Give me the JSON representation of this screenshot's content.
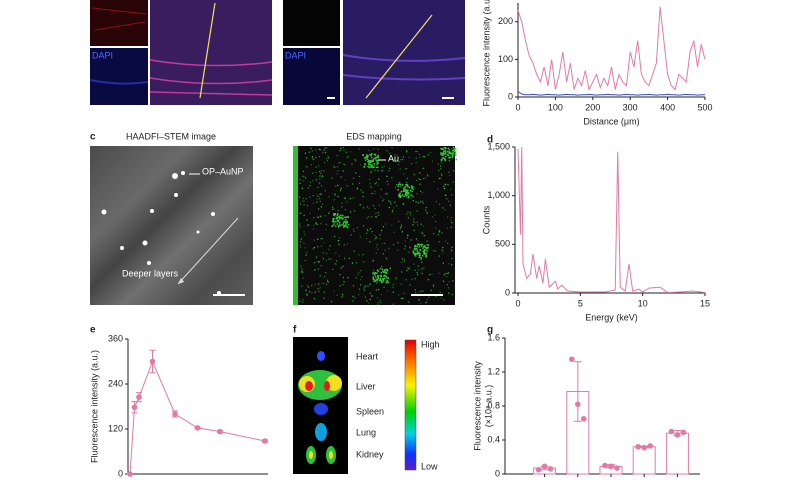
{
  "chart_data": [
    {
      "type": "line",
      "ylabel": "Fluorescence intensity (a.u.)",
      "xlabel": "Distance (μm)",
      "x": [
        0,
        10,
        20,
        30,
        40,
        50,
        60,
        70,
        80,
        90,
        100,
        110,
        120,
        130,
        140,
        150,
        160,
        170,
        180,
        190,
        200,
        210,
        220,
        230,
        240,
        250,
        260,
        270,
        280,
        290,
        300,
        310,
        320,
        330,
        340,
        350,
        360,
        370,
        380,
        390,
        400,
        410,
        420,
        430,
        440,
        450,
        460,
        470,
        480,
        490,
        500
      ],
      "series": [
        {
          "color": "#e07ba4",
          "values": [
            230,
            200,
            150,
            110,
            90,
            60,
            40,
            80,
            30,
            100,
            20,
            60,
            120,
            40,
            90,
            20,
            50,
            30,
            70,
            20,
            40,
            60,
            25,
            50,
            30,
            80,
            20,
            60,
            40,
            30,
            120,
            80,
            150,
            60,
            40,
            30,
            60,
            90,
            240,
            150,
            60,
            30,
            20,
            60,
            50,
            40,
            120,
            150,
            80,
            140,
            100
          ]
        },
        {
          "color": "#3b4cc0",
          "values": [
            15,
            8,
            6,
            6,
            7,
            6,
            5,
            6,
            7,
            6,
            6,
            5,
            6,
            7,
            6,
            6,
            5,
            6,
            6,
            7,
            6,
            5,
            6,
            6,
            7,
            6,
            6,
            5,
            6,
            7,
            6,
            6,
            5,
            6,
            6,
            7,
            6,
            5,
            6,
            6,
            7,
            6,
            6,
            5,
            6,
            7,
            6,
            6,
            5,
            6,
            6
          ]
        }
      ],
      "xlim": [
        0,
        500
      ],
      "ylim": [
        0,
        250
      ],
      "xticks": [
        0,
        100,
        200,
        300,
        400,
        500
      ],
      "yticks": [
        0,
        100,
        200
      ]
    },
    {
      "type": "line",
      "panel": "d",
      "ylabel": "Counts",
      "xlabel": "Energy (keV)",
      "x": [
        0,
        0.2,
        0.3,
        0.4,
        0.5,
        0.7,
        1.0,
        1.2,
        1.5,
        1.7,
        2.0,
        2.2,
        2.5,
        3.0,
        3.2,
        3.5,
        4.0,
        5,
        6,
        7,
        7.8,
        8.0,
        8.2,
        8.6,
        8.9,
        9.2,
        9.7,
        10,
        10.5,
        11.4,
        12,
        13,
        14,
        15
      ],
      "series": [
        {
          "color": "#e07ba4",
          "values": [
            1480,
            600,
            1500,
            300,
            250,
            150,
            200,
            400,
            150,
            280,
            100,
            350,
            60,
            120,
            40,
            80,
            20,
            10,
            10,
            10,
            30,
            1450,
            60,
            20,
            300,
            20,
            40,
            10,
            50,
            60,
            5,
            10,
            20,
            5
          ]
        }
      ],
      "xlim": [
        0,
        15
      ],
      "ylim": [
        0,
        1500
      ],
      "xticks": [
        0,
        5,
        10,
        15
      ],
      "yticks": [
        0,
        500,
        {
          "value": 1000,
          "label": "1,000"
        },
        {
          "value": 1500,
          "label": "1,500"
        }
      ]
    },
    {
      "type": "line",
      "panel": "e",
      "ylabel": "Fluorescence intensity (a.u.)",
      "x": [
        0,
        1,
        2,
        5,
        10,
        15,
        20,
        30
      ],
      "series": [
        {
          "color": "#e07ba4",
          "values": [
            0,
            178,
            205,
            300,
            160,
            123,
            113,
            88
          ],
          "errors": [
            0,
            15,
            12,
            30,
            8,
            3,
            3,
            3
          ]
        }
      ],
      "xlim": [
        0,
        30
      ],
      "ylim": [
        0,
        360
      ],
      "yticks": [
        0,
        120,
        240,
        360
      ]
    },
    {
      "type": "bar",
      "panel": "g",
      "ylabel": [
        "Fluorescence intensity",
        "(×10⁸ a.u.)"
      ],
      "categories": [
        null,
        null,
        null,
        null,
        null
      ],
      "color": "#e07ba4",
      "values": [
        0.07,
        0.97,
        0.09,
        0.32,
        0.48
      ],
      "errors": [
        0.02,
        0.35,
        0.02,
        0.01,
        0.03
      ],
      "points": [
        [
          0.05,
          0.09,
          0.06
        ],
        [
          1.35,
          0.82,
          0.65
        ],
        [
          0.1,
          0.09,
          0.07
        ],
        [
          0.32,
          0.31,
          0.33
        ],
        [
          0.5,
          0.46,
          0.49
        ]
      ],
      "ylim": [
        0,
        1.6
      ],
      "yticks": [
        0,
        0.4,
        0.8,
        1.2,
        1.6
      ]
    }
  ],
  "figure": {
    "dapi_labels": [
      "DAPI",
      "DAPI"
    ],
    "c": {
      "letter": "c",
      "left_title": "HAADFI–STEM image",
      "right_title": "EDS mapping",
      "np_label": "OP–AuNP",
      "au_label": "Au",
      "depth_label": "Deeper layers"
    },
    "f": {
      "letter": "f",
      "organs": [
        "Heart",
        "Liver",
        "Spleen",
        "Lung",
        "Kidney"
      ],
      "scale_high": "High",
      "scale_low": "Low"
    }
  }
}
